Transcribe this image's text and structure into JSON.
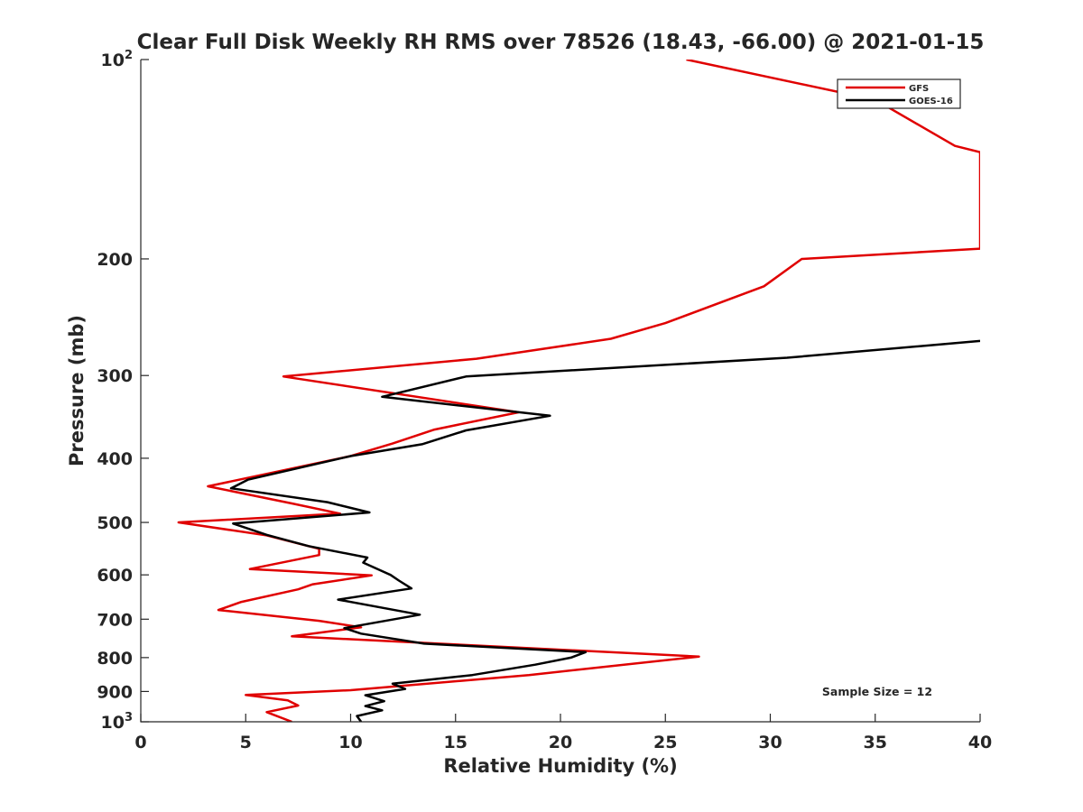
{
  "chart_data": {
    "type": "line",
    "title": "Clear Full Disk Weekly RH RMS over 78526 (18.43, -66.00) @ 2021-01-15",
    "xlabel": "Relative Humidity (%)",
    "ylabel": "Pressure (mb)",
    "xlim": [
      0,
      40
    ],
    "ylim": [
      100,
      1000
    ],
    "y_scale": "log",
    "y_reversed": true,
    "grid": false,
    "legend_position": "top-right",
    "xticks": [
      0,
      5,
      10,
      15,
      20,
      25,
      30,
      35,
      40
    ],
    "yticks": [
      {
        "value": 100,
        "base": "10",
        "exp": "2"
      },
      {
        "value": 200,
        "label": "200"
      },
      {
        "value": 300,
        "label": "300"
      },
      {
        "value": 400,
        "label": "400"
      },
      {
        "value": 500,
        "label": "500"
      },
      {
        "value": 600,
        "label": "600"
      },
      {
        "value": 700,
        "label": "700"
      },
      {
        "value": 800,
        "label": "800"
      },
      {
        "value": 900,
        "label": "900"
      },
      {
        "value": 1000,
        "base": "10",
        "exp": "3"
      }
    ],
    "annotation": "Sample Size = 12",
    "series": [
      {
        "name": "GFS",
        "color": "#e00000",
        "points": [
          [
            26.0,
            100
          ],
          [
            35.0,
            115
          ],
          [
            38.8,
            135
          ],
          [
            40.0,
            138
          ],
          [
            40.0,
            193
          ],
          [
            31.5,
            200
          ],
          [
            29.7,
            220
          ],
          [
            25.0,
            250
          ],
          [
            22.4,
            264
          ],
          [
            16.0,
            283
          ],
          [
            6.8,
            301
          ],
          [
            18.0,
            341
          ],
          [
            14.0,
            362
          ],
          [
            12.0,
            380
          ],
          [
            10.0,
            397
          ],
          [
            3.2,
            441
          ],
          [
            7.2,
            468
          ],
          [
            9.5,
            485
          ],
          [
            1.8,
            500
          ],
          [
            6.0,
            523
          ],
          [
            8.5,
            548
          ],
          [
            8.5,
            560
          ],
          [
            5.2,
            588
          ],
          [
            11.0,
            601
          ],
          [
            8.2,
            620
          ],
          [
            7.5,
            631
          ],
          [
            4.8,
            659
          ],
          [
            3.7,
            678
          ],
          [
            8.5,
            704
          ],
          [
            10.5,
            720
          ],
          [
            7.2,
            743
          ],
          [
            26.6,
            797
          ],
          [
            18.5,
            850
          ],
          [
            10.0,
            896
          ],
          [
            5.0,
            911
          ],
          [
            7.0,
            928
          ],
          [
            7.5,
            945
          ],
          [
            6.0,
            967
          ],
          [
            7.2,
            1000
          ]
        ]
      },
      {
        "name": "GOES-16",
        "color": "#000000",
        "points": [
          [
            40.0,
            266
          ],
          [
            30.8,
            282
          ],
          [
            15.5,
            301
          ],
          [
            11.5,
            323
          ],
          [
            19.5,
            345
          ],
          [
            15.5,
            363
          ],
          [
            13.4,
            381
          ],
          [
            10.0,
            397
          ],
          [
            5.1,
            431
          ],
          [
            4.3,
            444
          ],
          [
            8.9,
            466
          ],
          [
            10.9,
            483
          ],
          [
            4.4,
            502
          ],
          [
            6.0,
            522
          ],
          [
            8.0,
            543
          ],
          [
            10.8,
            565
          ],
          [
            10.6,
            575
          ],
          [
            11.9,
            600
          ],
          [
            12.3,
            612
          ],
          [
            12.9,
            629
          ],
          [
            9.4,
            654
          ],
          [
            13.3,
            689
          ],
          [
            9.7,
            722
          ],
          [
            10.5,
            736
          ],
          [
            13.5,
            762
          ],
          [
            21.2,
            785
          ],
          [
            20.5,
            800
          ],
          [
            18.8,
            820
          ],
          [
            15.8,
            850
          ],
          [
            12.0,
            876
          ],
          [
            12.6,
            892
          ],
          [
            10.7,
            912
          ],
          [
            11.6,
            931
          ],
          [
            10.7,
            947
          ],
          [
            11.5,
            961
          ],
          [
            10.3,
            980
          ],
          [
            10.5,
            1000
          ]
        ]
      }
    ]
  }
}
